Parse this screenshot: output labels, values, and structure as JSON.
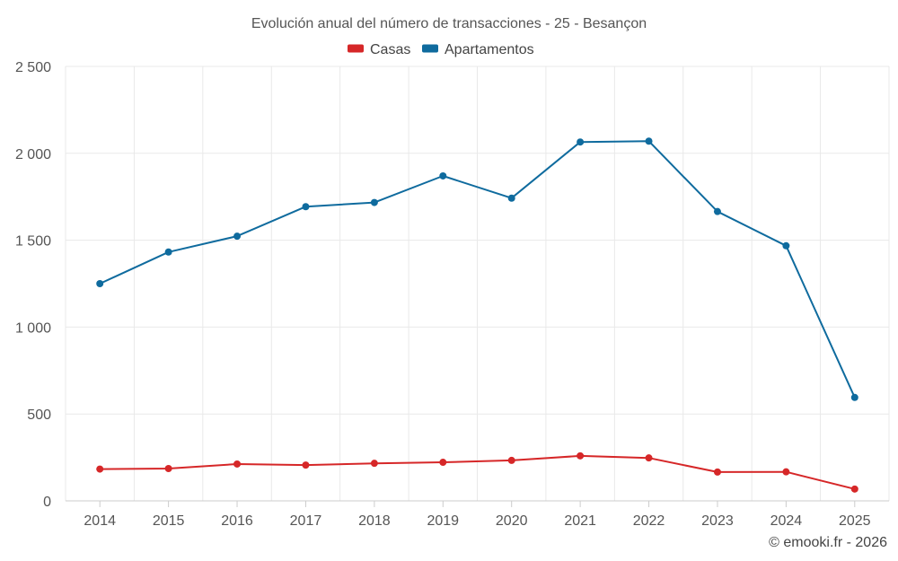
{
  "chart_data": {
    "type": "line",
    "title": "Evolución anual del número de transacciones - 25 - Besançon",
    "categories": [
      "2014",
      "2015",
      "2016",
      "2017",
      "2018",
      "2019",
      "2020",
      "2021",
      "2022",
      "2023",
      "2024",
      "2025"
    ],
    "series": [
      {
        "name": "Casas",
        "color": "#d62728",
        "values": [
          183,
          186,
          212,
          206,
          216,
          222,
          233,
          259,
          247,
          166,
          167,
          68
        ]
      },
      {
        "name": "Apartamentos",
        "color": "#0f6b9e",
        "values": [
          1250,
          1432,
          1523,
          1693,
          1717,
          1870,
          1742,
          2065,
          2070,
          1665,
          1468,
          595
        ]
      }
    ],
    "ylim": [
      0,
      2500
    ],
    "yticks": [
      0,
      500,
      1000,
      1500,
      2000,
      2500
    ],
    "ytick_labels": [
      "0",
      "500",
      "1 000",
      "1 500",
      "2 000",
      "2 500"
    ],
    "grid": true,
    "legend_position": "top-center",
    "xlabel": "",
    "ylabel": ""
  },
  "credit": "© emooki.fr - 2026"
}
